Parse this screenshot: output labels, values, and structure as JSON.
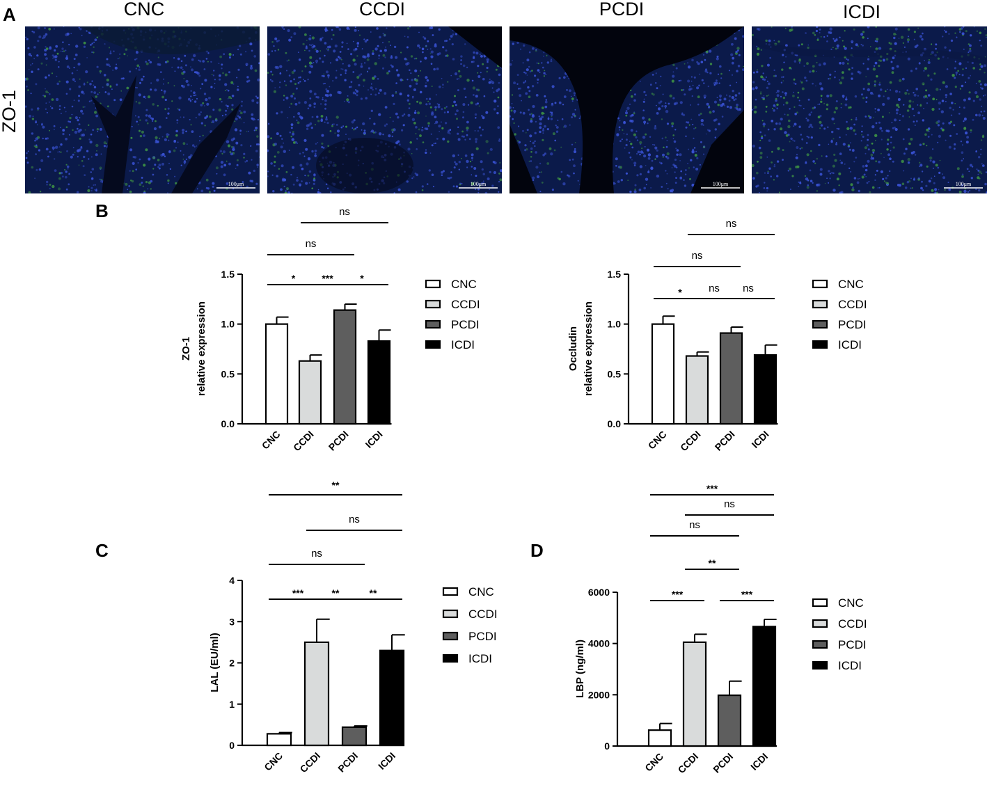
{
  "panels": {
    "a": "A",
    "b": "B",
    "c": "C",
    "d": "D"
  },
  "panel_a": {
    "row_label": "ZO-1",
    "scale_bar": "100μm",
    "images": [
      {
        "title": "CNC",
        "kind": "crypt"
      },
      {
        "title": "CCDI",
        "kind": "dense"
      },
      {
        "title": "PCDI",
        "kind": "villi"
      },
      {
        "title": "ICDI",
        "kind": "muscle"
      }
    ]
  },
  "colors": {
    "CNC": "#ffffff",
    "CCDI": "#d9dbdb",
    "PCDI": "#5e5e5e",
    "ICDI": "#000000",
    "outline": "#000000",
    "tissue_blue": "#2b3fa8",
    "tissue_green": "#3f8a3a"
  },
  "chart_data": [
    {
      "id": "zo1",
      "type": "bar",
      "ylabel": [
        "ZO-1",
        "relative expression"
      ],
      "categories": [
        "CNC",
        "CCDI",
        "PCDI",
        "ICDI"
      ],
      "values": [
        1.0,
        0.63,
        1.14,
        0.83
      ],
      "errors": [
        0.07,
        0.06,
        0.06,
        0.11
      ],
      "ylim": [
        0,
        1.5
      ],
      "ticks": [
        0.0,
        0.5,
        1.0,
        1.5
      ],
      "tick_labels": [
        "0.0",
        "0.5",
        "1.0",
        "1.5"
      ],
      "legend": [
        "CNC",
        "CCDI",
        "PCDI",
        "ICDI"
      ],
      "significance": [
        {
          "from": 0,
          "to": 1,
          "label": "*"
        },
        {
          "from": 1,
          "to": 2,
          "label": "***"
        },
        {
          "from": 2,
          "to": 3,
          "label": "*"
        },
        {
          "from": 0,
          "to": 2,
          "label": "ns"
        },
        {
          "from": 1,
          "to": 3,
          "label": "ns"
        }
      ]
    },
    {
      "id": "occludin",
      "type": "bar",
      "ylabel": [
        "Occludin",
        "relative expression"
      ],
      "categories": [
        "CNC",
        "CCDI",
        "PCDI",
        "ICDI"
      ],
      "values": [
        1.0,
        0.68,
        0.91,
        0.69
      ],
      "errors": [
        0.08,
        0.04,
        0.06,
        0.1
      ],
      "ylim": [
        0,
        1.5
      ],
      "ticks": [
        0.0,
        0.5,
        1.0,
        1.5
      ],
      "tick_labels": [
        "0.0",
        "0.5",
        "1.0",
        "1.5"
      ],
      "legend": [
        "CNC",
        "CCDI",
        "PCDI",
        "ICDI"
      ],
      "significance": [
        {
          "from": 0,
          "to": 1,
          "label": "*"
        },
        {
          "from": 1,
          "to": 2,
          "label": "ns"
        },
        {
          "from": 2,
          "to": 3,
          "label": "ns"
        },
        {
          "from": 0,
          "to": 2,
          "label": "ns"
        },
        {
          "from": 1,
          "to": 3,
          "label": "ns"
        }
      ]
    },
    {
      "id": "lal",
      "type": "bar",
      "ylabel": [
        "LAL (EU/ml)"
      ],
      "categories": [
        "CNC",
        "CCDI",
        "PCDI",
        "ICDI"
      ],
      "values": [
        0.28,
        2.5,
        0.44,
        2.3
      ],
      "errors": [
        0.03,
        0.56,
        0.03,
        0.38
      ],
      "ylim": [
        0,
        4
      ],
      "ticks": [
        0,
        1,
        2,
        3,
        4
      ],
      "tick_labels": [
        "0",
        "1",
        "2",
        "3",
        "4"
      ],
      "legend": [
        "CNC",
        "CCDI",
        "PCDI",
        "ICDI"
      ],
      "significance": [
        {
          "from": 0,
          "to": 1,
          "label": "***"
        },
        {
          "from": 1,
          "to": 2,
          "label": "**"
        },
        {
          "from": 2,
          "to": 3,
          "label": "**"
        },
        {
          "from": 0,
          "to": 2,
          "label": "ns"
        },
        {
          "from": 1,
          "to": 3,
          "label": "ns"
        },
        {
          "from": 0,
          "to": 3,
          "label": "**"
        }
      ]
    },
    {
      "id": "lbp",
      "type": "bar",
      "ylabel": [
        "LBP (ng/ml)"
      ],
      "categories": [
        "CNC",
        "CCDI",
        "PCDI",
        "ICDI"
      ],
      "values": [
        620,
        4050,
        1980,
        4660
      ],
      "errors": [
        260,
        310,
        550,
        280
      ],
      "ylim": [
        0,
        6000
      ],
      "ticks": [
        0,
        2000,
        4000,
        6000
      ],
      "tick_labels": [
        "0",
        "2000",
        "4000",
        "6000"
      ],
      "legend": [
        "CNC",
        "CCDI",
        "PCDI",
        "ICDI"
      ],
      "significance": [
        {
          "from": 0,
          "to": 1,
          "label": "***"
        },
        {
          "from": 2,
          "to": 3,
          "label": "***"
        },
        {
          "from": 1,
          "to": 2,
          "label": "**"
        },
        {
          "from": 0,
          "to": 2,
          "label": "ns"
        },
        {
          "from": 1,
          "to": 3,
          "label": "ns"
        },
        {
          "from": 0,
          "to": 3,
          "label": "***"
        }
      ]
    }
  ]
}
